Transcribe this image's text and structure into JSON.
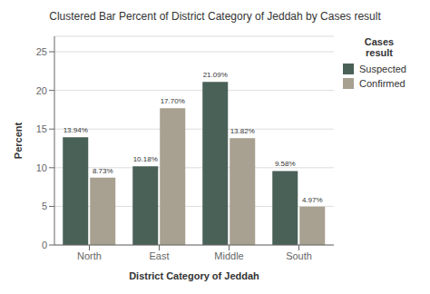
{
  "chart_data": {
    "type": "bar",
    "title": "Clustered Bar Percent of District Category of Jeddah by Cases result",
    "xlabel": "District Category of Jeddah",
    "ylabel": "Percent",
    "categories": [
      "North",
      "East",
      "Middle",
      "South"
    ],
    "series": [
      {
        "name": "Suspected",
        "color": "#4a6158",
        "values": [
          13.94,
          10.18,
          21.09,
          9.58
        ],
        "value_labels": [
          "13.94%",
          "10.18%",
          "21.09%",
          "9.58%"
        ]
      },
      {
        "name": "Confirmed",
        "color": "#a8a090",
        "values": [
          8.73,
          17.7,
          13.82,
          4.97
        ],
        "value_labels": [
          "8.73%",
          "17.70%",
          "13.82%",
          "4.97%"
        ]
      }
    ],
    "ylim": [
      0,
      27
    ],
    "yticks": [
      0,
      5,
      10,
      15,
      20,
      25
    ],
    "grid": true,
    "legend": "right",
    "legend_title": "Cases\nresult",
    "data_labels": true
  }
}
